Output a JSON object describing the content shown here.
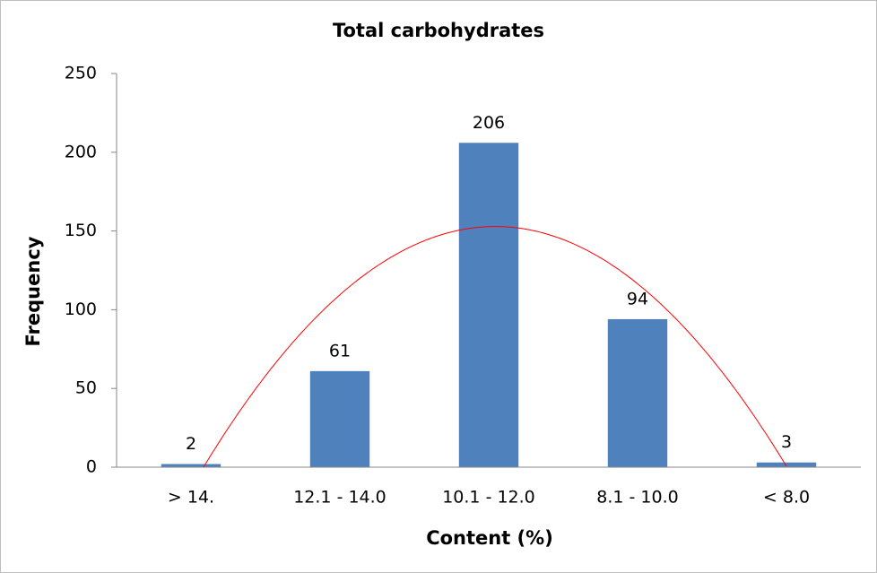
{
  "chart_data": {
    "type": "bar",
    "title": "Total carbohydrates",
    "x_label": "Content (%)",
    "y_label": "Frequency",
    "categories": [
      "> 14.",
      "12.1 - 14.0",
      "10.1 - 12.0",
      "8.1 - 10.0",
      "< 8.0"
    ],
    "values": [
      2,
      61,
      206,
      94,
      3
    ],
    "color": "#4f81bd",
    "ylim": [
      0,
      250
    ],
    "yticks": [
      0,
      50,
      100,
      150,
      200,
      250
    ],
    "trendline": "polynomial",
    "trendline_color": "#ff0000"
  }
}
